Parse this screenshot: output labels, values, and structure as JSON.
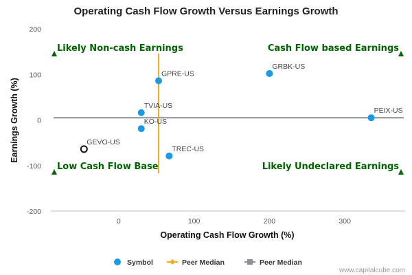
{
  "chart_data": {
    "type": "scatter",
    "title": "Operating Cash Flow Growth Versus Earnings Growth",
    "xlabel": "Operating Cash Flow Growth (%)",
    "ylabel": "Earnings Growth (%)",
    "xlim": [
      -90,
      380
    ],
    "ylim": [
      -200,
      200
    ],
    "x_ticks": [
      "0",
      "100",
      "200",
      "300"
    ],
    "y_ticks": [
      "200",
      "100",
      "0",
      "-100",
      "-200"
    ],
    "grid": false,
    "points": [
      {
        "label": "GPRE-US",
        "x": 53,
        "y": 86,
        "style": "filled",
        "color": "#1a9ae6"
      },
      {
        "label": "GRBK-US",
        "x": 200,
        "y": 102,
        "style": "filled",
        "color": "#1a9ae6"
      },
      {
        "label": "TVIA-US",
        "x": 30,
        "y": 16,
        "style": "filled",
        "color": "#1a9ae6"
      },
      {
        "label": "KO-US",
        "x": 30,
        "y": -19,
        "style": "filled",
        "color": "#1a9ae6"
      },
      {
        "label": "PEIX-US",
        "x": 335,
        "y": 5,
        "style": "filled",
        "color": "#1a9ae6"
      },
      {
        "label": "TREC-US",
        "x": 67,
        "y": -79,
        "style": "filled",
        "color": "#1a9ae6"
      },
      {
        "label": "GEVO-US",
        "x": -46,
        "y": -64,
        "style": "hollow",
        "color": "#111111"
      }
    ],
    "peer_median_x": 53,
    "peer_median_y": 5,
    "peer_median_x_color": "#f5a623",
    "peer_median_y_color": "#8a8f99",
    "quadrants": {
      "top_left": "Likely Non-cash Earnings",
      "top_right": "Cash Flow based Earnings",
      "bottom_left": "Low Cash Flow Base",
      "bottom_right": "Likely Undeclared Earnings"
    },
    "quadrant_color": "#006400",
    "legend": [
      {
        "label": "Symbol",
        "marker": "circle",
        "color": "#1a9ae6"
      },
      {
        "label": "Peer Median",
        "marker": "diamond-line",
        "color": "#f5a623"
      },
      {
        "label": "Peer Median",
        "marker": "square-line",
        "color": "#8a8f99"
      }
    ],
    "legend_position": "bottom-center"
  },
  "credit": "www.capitalcube.com"
}
